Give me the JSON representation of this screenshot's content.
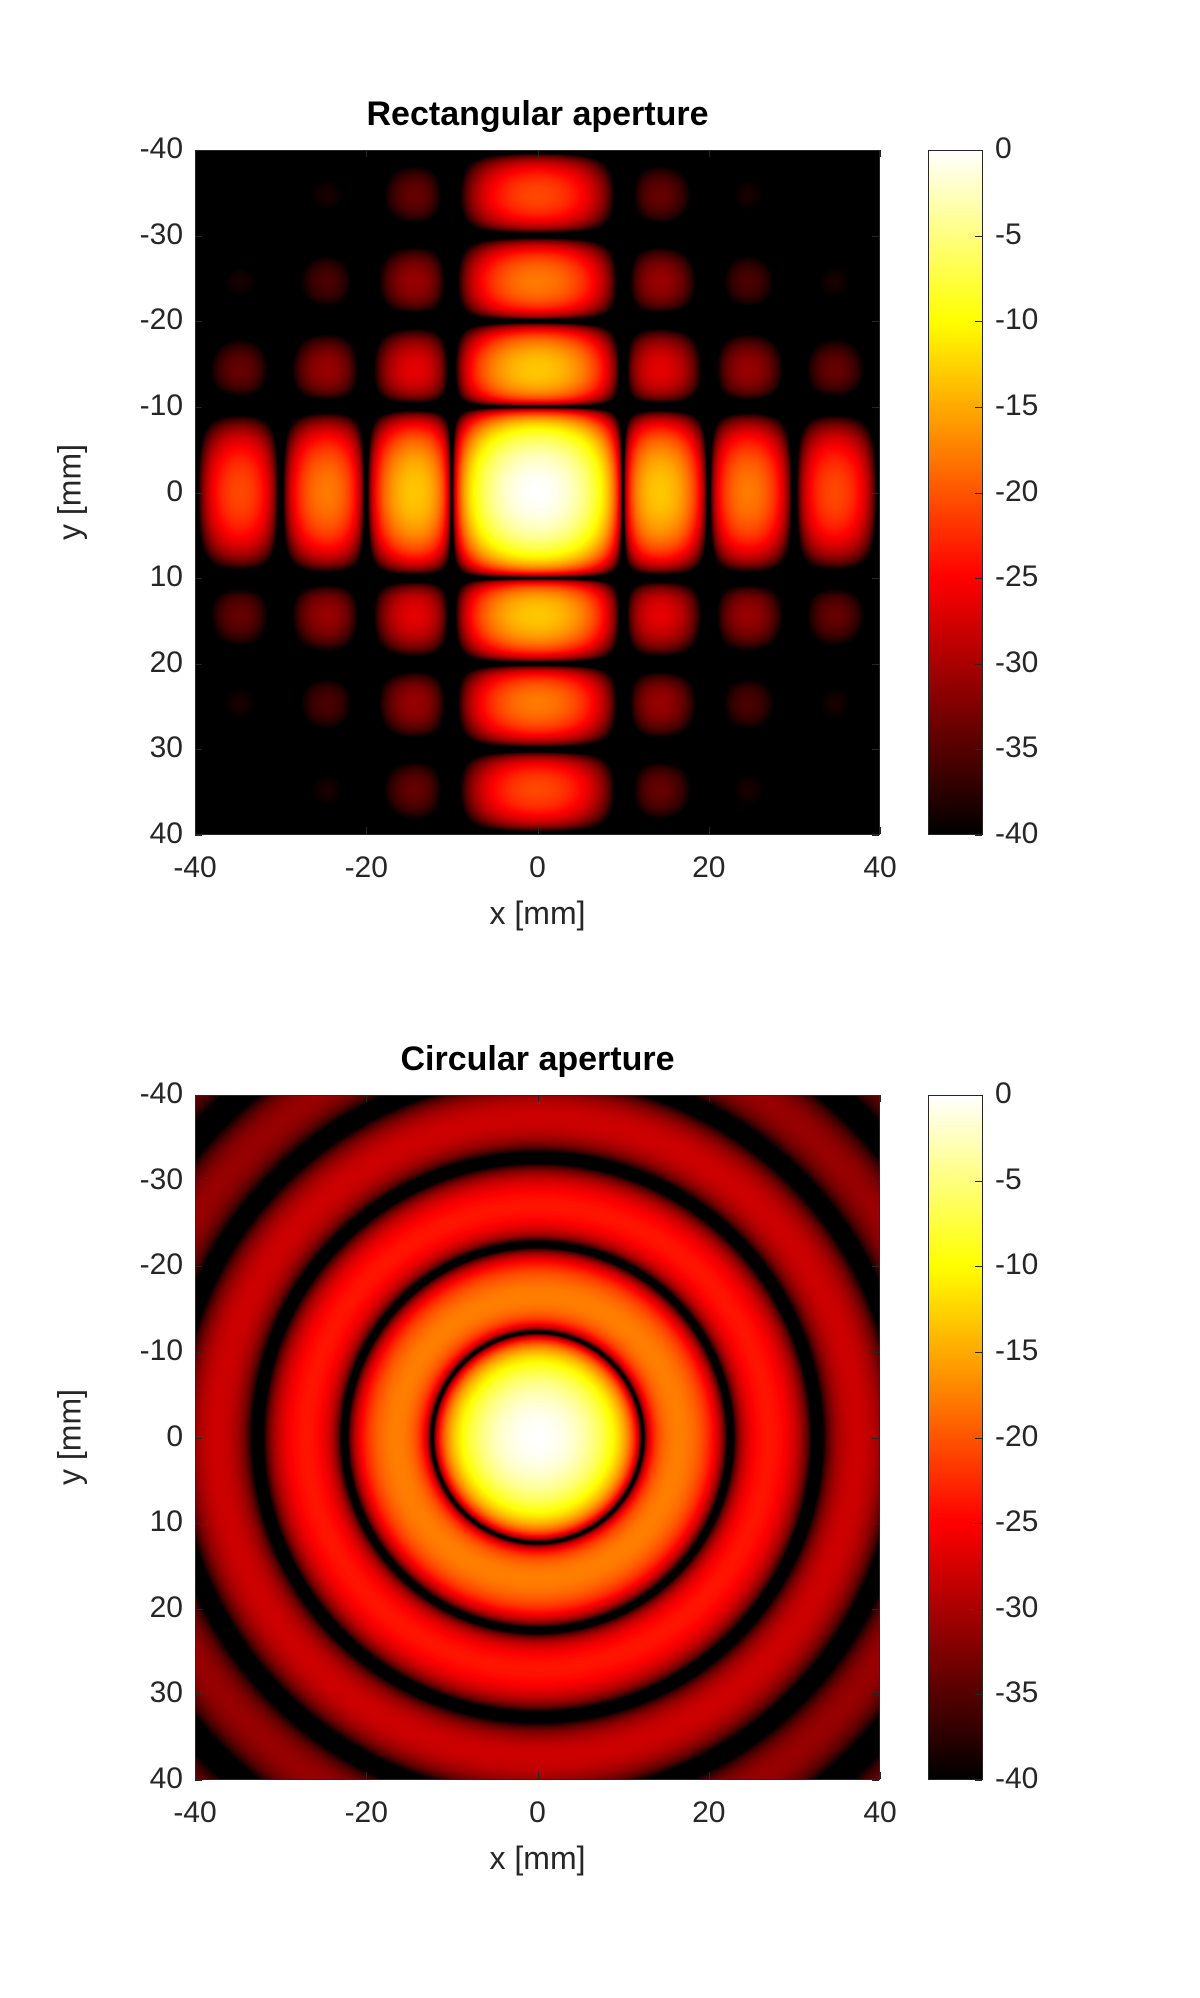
{
  "chart_data": [
    {
      "type": "heatmap",
      "title": "Rectangular aperture",
      "pattern": "sinc^2(x) * sinc^2(y) diffraction, normalized dB",
      "xlabel": "x [mm]",
      "ylabel": "y [mm]",
      "xlim": [
        -40,
        40
      ],
      "ylim": [
        -40,
        40
      ],
      "y_direction": "reversed",
      "xticks": [
        "-40",
        "-20",
        "0",
        "20",
        "40"
      ],
      "yticks": [
        "-40",
        "-30",
        "-20",
        "-10",
        "0",
        "10",
        "20",
        "30",
        "40"
      ],
      "first_null_mm": 10,
      "null_spacing_mm": 10,
      "colormap": "hot",
      "clim": [
        -40,
        0
      ],
      "colorbar_ticks": [
        "0",
        "-5",
        "-10",
        "-15",
        "-20",
        "-25",
        "-30",
        "-35",
        "-40"
      ]
    },
    {
      "type": "heatmap",
      "title": "Circular aperture",
      "pattern": "Airy pattern [2 J1(r)/r]^2, normalized dB",
      "xlabel": "x [mm]",
      "ylabel": "y [mm]",
      "xlim": [
        -40,
        40
      ],
      "ylim": [
        -40,
        40
      ],
      "y_direction": "reversed",
      "xticks": [
        "-40",
        "-20",
        "0",
        "20",
        "40"
      ],
      "yticks": [
        "-40",
        "-30",
        "-20",
        "-10",
        "0",
        "10",
        "20",
        "30",
        "40"
      ],
      "ring_null_radii_mm": [
        12.3,
        22.5,
        32.6,
        42.7
      ],
      "colormap": "hot",
      "clim": [
        -40,
        0
      ],
      "colorbar_ticks": [
        "0",
        "-5",
        "-10",
        "-15",
        "-20",
        "-25",
        "-30",
        "-35",
        "-40"
      ]
    }
  ]
}
